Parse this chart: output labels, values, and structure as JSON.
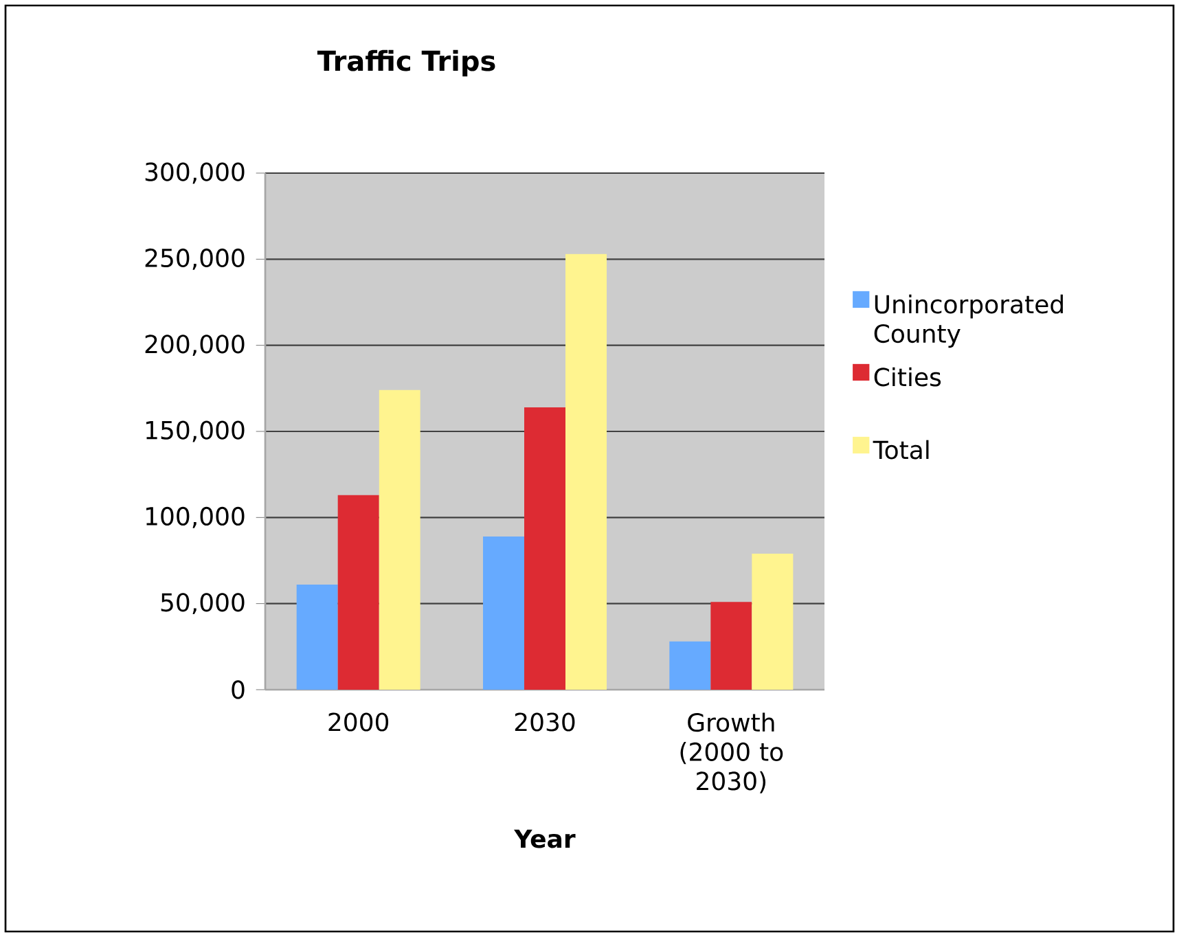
{
  "chart_data": {
    "type": "bar",
    "title": "Traffic Trips",
    "xlabel": "Year",
    "categories": [
      "2000",
      "2030",
      "Growth (2000 to 2030)"
    ],
    "series": [
      {
        "name": "Unincorporated County",
        "color": "#66aaff",
        "values": [
          61000,
          89000,
          28000
        ]
      },
      {
        "name": "Cities",
        "color": "#dd2b33",
        "values": [
          113000,
          164000,
          51000
        ]
      },
      {
        "name": "Total",
        "color": "#fff48f",
        "values": [
          174000,
          253000,
          79000
        ]
      }
    ],
    "ylim": [
      0,
      300000
    ],
    "yticks": [
      {
        "value": 0,
        "label": "0"
      },
      {
        "value": 50000,
        "label": "50,000"
      },
      {
        "value": 100000,
        "label": "100,000"
      },
      {
        "value": 150000,
        "label": "150,000"
      },
      {
        "value": 200000,
        "label": "200,000"
      },
      {
        "value": 250000,
        "label": "250,000"
      },
      {
        "value": 300000,
        "label": "300,000"
      }
    ],
    "grid": "y",
    "legend": "right"
  }
}
